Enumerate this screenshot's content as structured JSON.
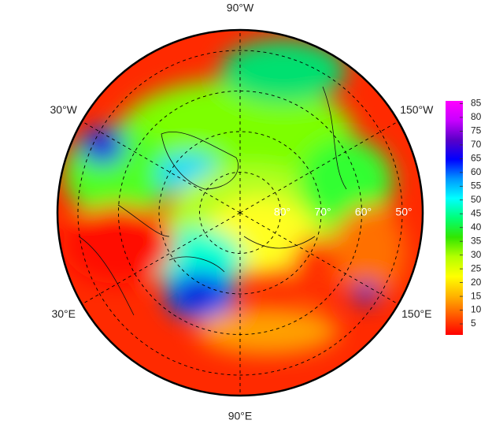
{
  "map": {
    "longitude_labels": [
      {
        "value": -90,
        "label": "90°W"
      },
      {
        "value": -30,
        "label": "30°W"
      },
      {
        "value": -150,
        "label": "150°W"
      },
      {
        "value": 30,
        "label": "30°E"
      },
      {
        "value": 150,
        "label": "150°E"
      },
      {
        "value": 90,
        "label": "90°E"
      }
    ],
    "latitude_labels": [
      {
        "value": 80,
        "label": "80°"
      },
      {
        "value": 70,
        "label": "70°"
      },
      {
        "value": 60,
        "label": "60°"
      },
      {
        "value": 50,
        "label": "50°"
      }
    ]
  },
  "colorbar": {
    "range": [
      1,
      86
    ],
    "ticks": [
      5,
      10,
      15,
      20,
      25,
      30,
      35,
      40,
      45,
      50,
      55,
      60,
      65,
      70,
      75,
      80,
      85
    ],
    "colormap": [
      "#ff0000",
      "#ff5a00",
      "#ffb400",
      "#ffff00",
      "#b4ff00",
      "#32e600",
      "#00ff78",
      "#00ffff",
      "#0096ff",
      "#0000ff",
      "#5a00c8",
      "#c800ff",
      "#ff00ff"
    ]
  }
}
